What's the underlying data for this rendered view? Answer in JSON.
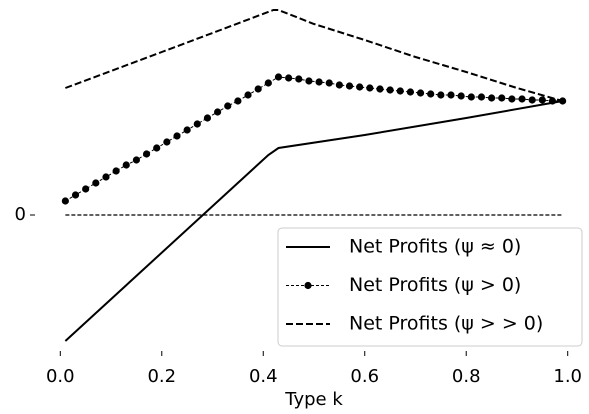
{
  "chart_data": {
    "type": "line",
    "xlabel": "Type k",
    "xlim": [
      -0.04,
      1.04
    ],
    "ylim": [
      -1.35,
      2.1
    ],
    "xticks": [
      {
        "value": 0,
        "label": "0.0"
      },
      0.2,
      0.4,
      0.6,
      0.8,
      {
        "value": 1,
        "label": "1.0"
      }
    ],
    "yticks": [
      0
    ],
    "zero_line": true,
    "legend": "lower right",
    "series": [
      {
        "name": "Net Profits (ψ ≈ 0)",
        "color": "#000000",
        "style": "solid",
        "x": [
          0.01,
          0.41,
          0.43,
          0.6,
          0.8,
          0.99
        ],
        "values": [
          -1.26,
          0.6,
          0.67,
          0.8,
          0.97,
          1.14
        ]
      },
      {
        "name": "Net Profits (ψ > 0)",
        "color": "#000000",
        "style": "dotted-marker",
        "x": [
          0.01,
          0.03,
          0.05,
          0.07,
          0.09,
          0.11,
          0.13,
          0.15,
          0.17,
          0.19,
          0.21,
          0.23,
          0.25,
          0.27,
          0.29,
          0.31,
          0.33,
          0.35,
          0.37,
          0.39,
          0.41,
          0.43,
          0.45,
          0.47,
          0.49,
          0.51,
          0.53,
          0.55,
          0.57,
          0.59,
          0.61,
          0.63,
          0.65,
          0.67,
          0.69,
          0.71,
          0.73,
          0.75,
          0.77,
          0.79,
          0.81,
          0.83,
          0.85,
          0.87,
          0.89,
          0.91,
          0.93,
          0.95,
          0.97,
          0.99
        ],
        "values": [
          0.14,
          0.2,
          0.26,
          0.32,
          0.38,
          0.44,
          0.5,
          0.55,
          0.61,
          0.67,
          0.73,
          0.79,
          0.85,
          0.91,
          0.97,
          1.03,
          1.09,
          1.14,
          1.2,
          1.26,
          1.32,
          1.38,
          1.37,
          1.36,
          1.34,
          1.33,
          1.32,
          1.3,
          1.29,
          1.28,
          1.27,
          1.26,
          1.25,
          1.24,
          1.23,
          1.22,
          1.21,
          1.2,
          1.2,
          1.19,
          1.18,
          1.18,
          1.17,
          1.17,
          1.16,
          1.16,
          1.15,
          1.15,
          1.14,
          1.14
        ]
      },
      {
        "name": "Net Profits (ψ > > 0)",
        "color": "#000000",
        "style": "dashed",
        "x": [
          0.01,
          0.2,
          0.3,
          0.42,
          0.43,
          0.5,
          0.6,
          0.7,
          0.8,
          0.9,
          0.99
        ],
        "values": [
          1.27,
          1.63,
          1.82,
          2.05,
          2.05,
          1.91,
          1.75,
          1.58,
          1.43,
          1.27,
          1.14
        ]
      }
    ]
  }
}
